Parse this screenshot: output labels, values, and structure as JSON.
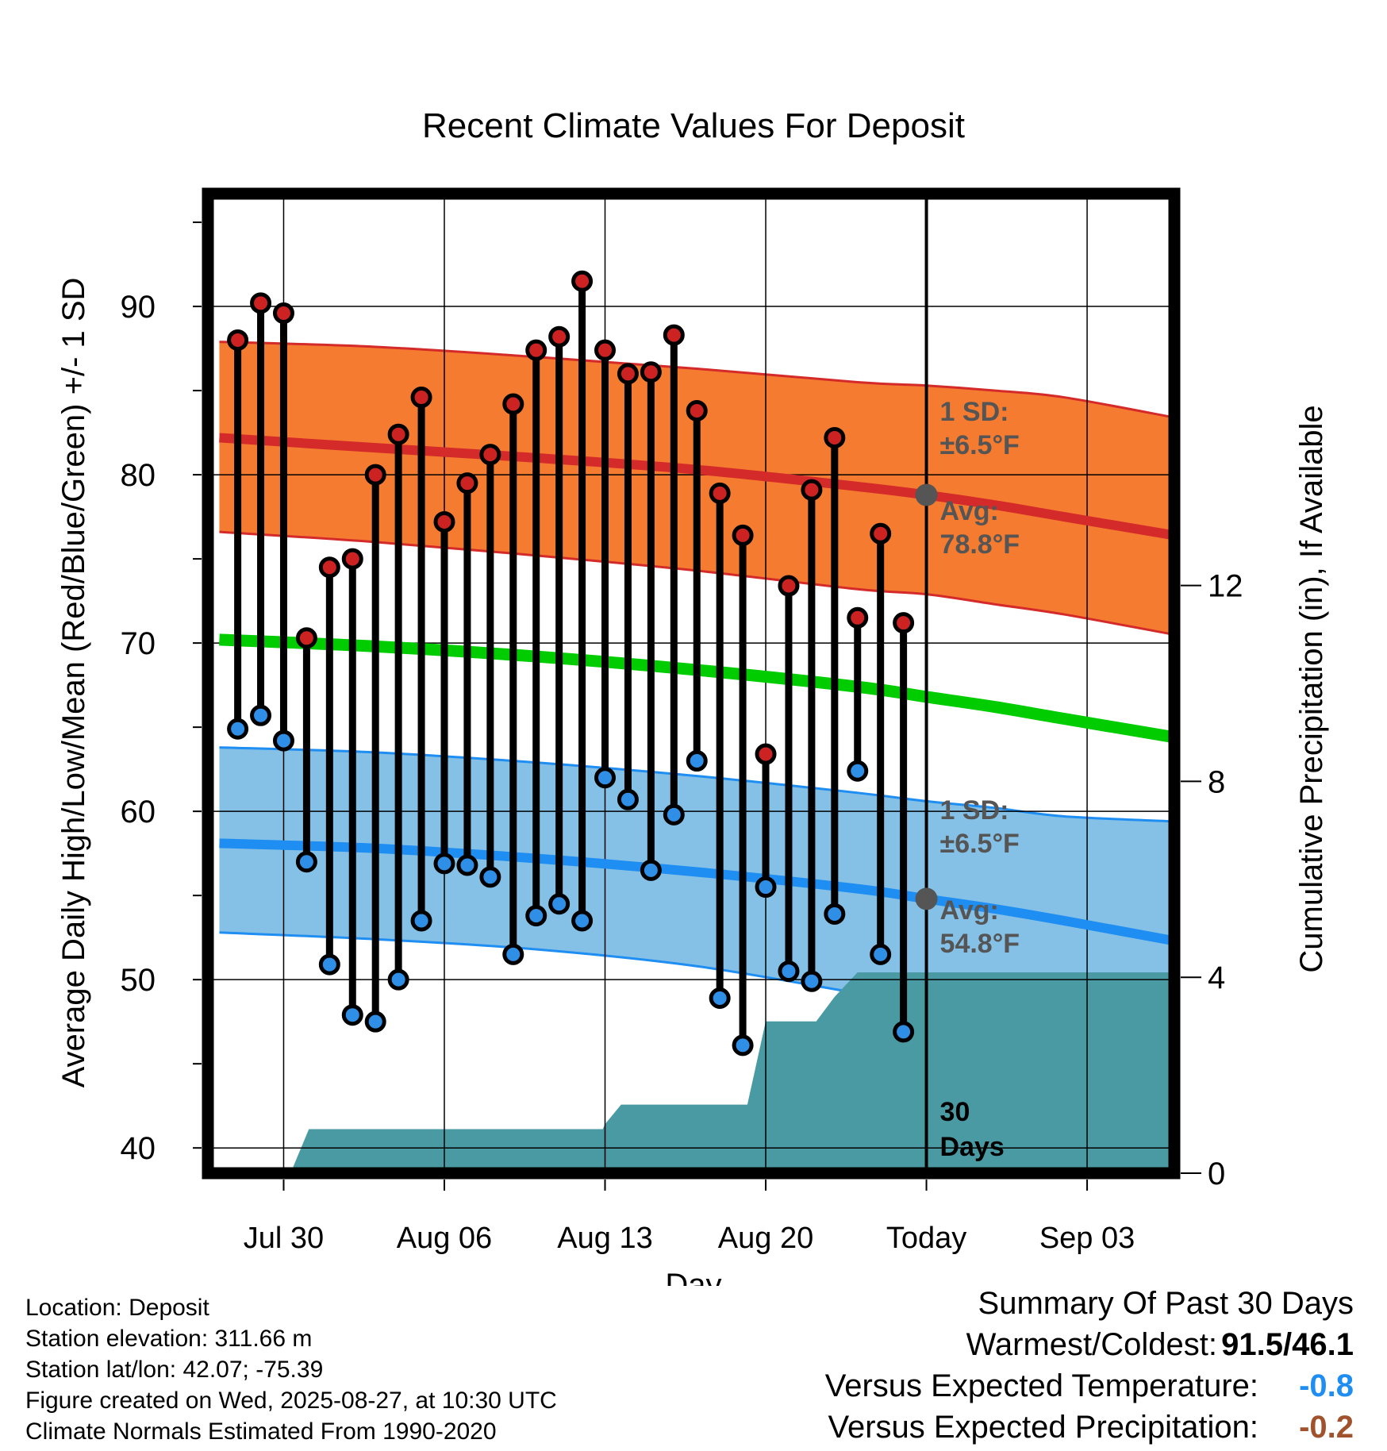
{
  "chart_data": {
    "type": "line",
    "title": "Recent Climate Values For Deposit",
    "xlabel": "Day",
    "ylabel": "Average Daily High/Low/Mean (Red/Blue/Green) +/- 1 SD",
    "ylabel_right": "Cumulative Precipitation (in), If Available",
    "ylim": [
      38.5,
      96.7
    ],
    "ylim_right": [
      0,
      20
    ],
    "xlim": [
      -3.3,
      38.8
    ],
    "x_ticks": [
      {
        "x": 0,
        "label": "Jul 30"
      },
      {
        "x": 7,
        "label": "Aug 06"
      },
      {
        "x": 14,
        "label": "Aug 13"
      },
      {
        "x": 21,
        "label": "Aug 20"
      },
      {
        "x": 28,
        "label": "Today"
      },
      {
        "x": 35,
        "label": "Sep 03"
      }
    ],
    "y_ticks": [
      40,
      50,
      60,
      70,
      80,
      90
    ],
    "y_ticks_right": [
      0,
      4,
      8,
      12
    ],
    "grid": true,
    "today_x": 28,
    "today_label_line1": "30",
    "today_label_line2": "Days",
    "daily_x": [
      -2,
      -1,
      0,
      1,
      2,
      3,
      4,
      5,
      6,
      7,
      8,
      9,
      10,
      11,
      12,
      13,
      14,
      15,
      16,
      17,
      18,
      19,
      20,
      21,
      22,
      23,
      24,
      25,
      26,
      27
    ],
    "daily_high": [
      88.0,
      90.2,
      89.6,
      70.3,
      74.5,
      75.0,
      80.0,
      82.4,
      84.6,
      77.2,
      79.5,
      81.2,
      84.2,
      87.4,
      88.2,
      91.5,
      87.4,
      86.0,
      86.1,
      88.3,
      83.8,
      78.9,
      76.4,
      63.4,
      73.4,
      79.1,
      82.2,
      71.5,
      76.5,
      71.2
    ],
    "daily_low": [
      64.9,
      65.7,
      64.2,
      57.0,
      50.9,
      47.9,
      47.5,
      50.0,
      53.5,
      56.9,
      56.8,
      56.1,
      51.5,
      53.8,
      54.5,
      53.5,
      62.0,
      60.7,
      56.5,
      59.8,
      63.0,
      48.9,
      46.1,
      55.5,
      50.5,
      49.9,
      53.9,
      62.4,
      51.5,
      46.9
    ],
    "normal_x": [
      -2.8,
      4,
      11,
      18,
      25,
      28,
      31,
      34,
      38.8
    ],
    "normal_high": [
      82.2,
      81.6,
      81.0,
      80.3,
      79.3,
      78.8,
      78.2,
      77.5,
      76.4
    ],
    "normal_high_upper": [
      87.9,
      87.6,
      87.0,
      86.3,
      85.5,
      85.3,
      85.0,
      84.6,
      83.4
    ],
    "normal_high_lower": [
      76.6,
      76.0,
      75.2,
      74.3,
      73.2,
      72.9,
      72.3,
      71.7,
      70.5
    ],
    "normal_mean": [
      70.2,
      69.8,
      69.2,
      68.4,
      67.4,
      66.8,
      66.2,
      65.5,
      64.4
    ],
    "normal_low": [
      58.1,
      57.8,
      57.2,
      56.4,
      55.4,
      54.8,
      54.2,
      53.5,
      52.3
    ],
    "normal_low_upper": [
      63.8,
      63.5,
      62.9,
      62.1,
      61.1,
      60.6,
      60.2,
      59.7,
      59.4
    ],
    "normal_low_lower": [
      52.8,
      52.4,
      51.8,
      50.8,
      49.2,
      48.6,
      48.0,
      47.4,
      46.6
    ],
    "precip_x": [
      0.3,
      1.1,
      13.9,
      14.0,
      14.7,
      20.2,
      21.0,
      23.2,
      24.0,
      25.0,
      38.8
    ],
    "precip_cumulative": [
      0,
      0.9,
      0.9,
      1.0,
      1.4,
      1.4,
      3.1,
      3.1,
      3.6,
      4.1,
      4.1
    ],
    "annotations": {
      "high_sd_line1": "1 SD:",
      "high_sd_line2": "±6.5°F",
      "high_avg_line1": "Avg:",
      "high_avg_line2": "78.8°F",
      "low_sd_line1": "1 SD:",
      "low_sd_line2": "±6.5°F",
      "low_avg_line1": "Avg:",
      "low_avg_line2": "54.8°F"
    },
    "colors": {
      "high_band": "#f47b2f",
      "high_line": "#d42a2a",
      "high_dot": "#cc2222",
      "mean_line": "#00cc00",
      "low_band": "#85c1e6",
      "low_line": "#1f8ef2",
      "low_dot": "#2f8fe6",
      "precip": "#4a9aa4",
      "annotation": "#555555"
    }
  },
  "footer": {
    "location": "Location: Deposit",
    "elevation": "Station elevation: 311.66 m",
    "latlon": "Station lat/lon: 42.07; -75.39",
    "created": "Figure created on Wed, 2025-08-27, at 10:30 UTC",
    "normals": "Climate Normals Estimated From 1990-2020"
  },
  "summary": {
    "title": "Summary Of Past 30 Days",
    "warmest_coldest_label": "Warmest/Coldest:",
    "warmest_coldest_value": "91.5/46.1",
    "temp_label": "Versus Expected Temperature:",
    "temp_value": "-0.8",
    "temp_color": "#1f8ef2",
    "precip_label": "Versus Expected Precipitation:",
    "precip_value": "-0.2",
    "precip_color": "#a0522d"
  }
}
